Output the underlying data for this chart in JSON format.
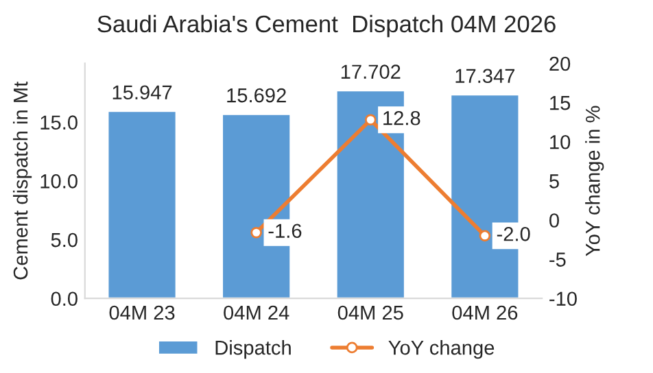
{
  "chart_data": {
    "type": "bar",
    "title": "Saudi Arabia's Cement  Dispatch 04M 2026",
    "ylabel": "Cement dispatch in Mt",
    "y2label": "YoY change in %",
    "categories": [
      "04M 23",
      "04M 24",
      "04M 25",
      "04M 26"
    ],
    "series": [
      {
        "name": "Dispatch",
        "color": "#5b9bd5",
        "values": [
          15.947,
          15.692,
          17.702,
          17.347
        ]
      },
      {
        "name": "YoY change",
        "type": "line",
        "axis": "y2",
        "color": "#ed7d31",
        "marker": "circle",
        "values": [
          null,
          -1.6,
          12.8,
          -2.0
        ],
        "value_labels": [
          null,
          "-1.6",
          "12.8",
          "-2.0"
        ]
      }
    ],
    "data_labels": true,
    "ylim": [
      0,
      20
    ],
    "yticks": [
      {
        "value": 0,
        "label": "0.0"
      },
      {
        "value": 5,
        "label": "5.0"
      },
      {
        "value": 10,
        "label": "10.0"
      },
      {
        "value": 15,
        "label": "15.0"
      }
    ],
    "y2lim": [
      -10,
      20
    ],
    "y2ticks": [
      -10,
      -5,
      0,
      5,
      10,
      15,
      20
    ],
    "legend": "bottom",
    "grid": false
  }
}
